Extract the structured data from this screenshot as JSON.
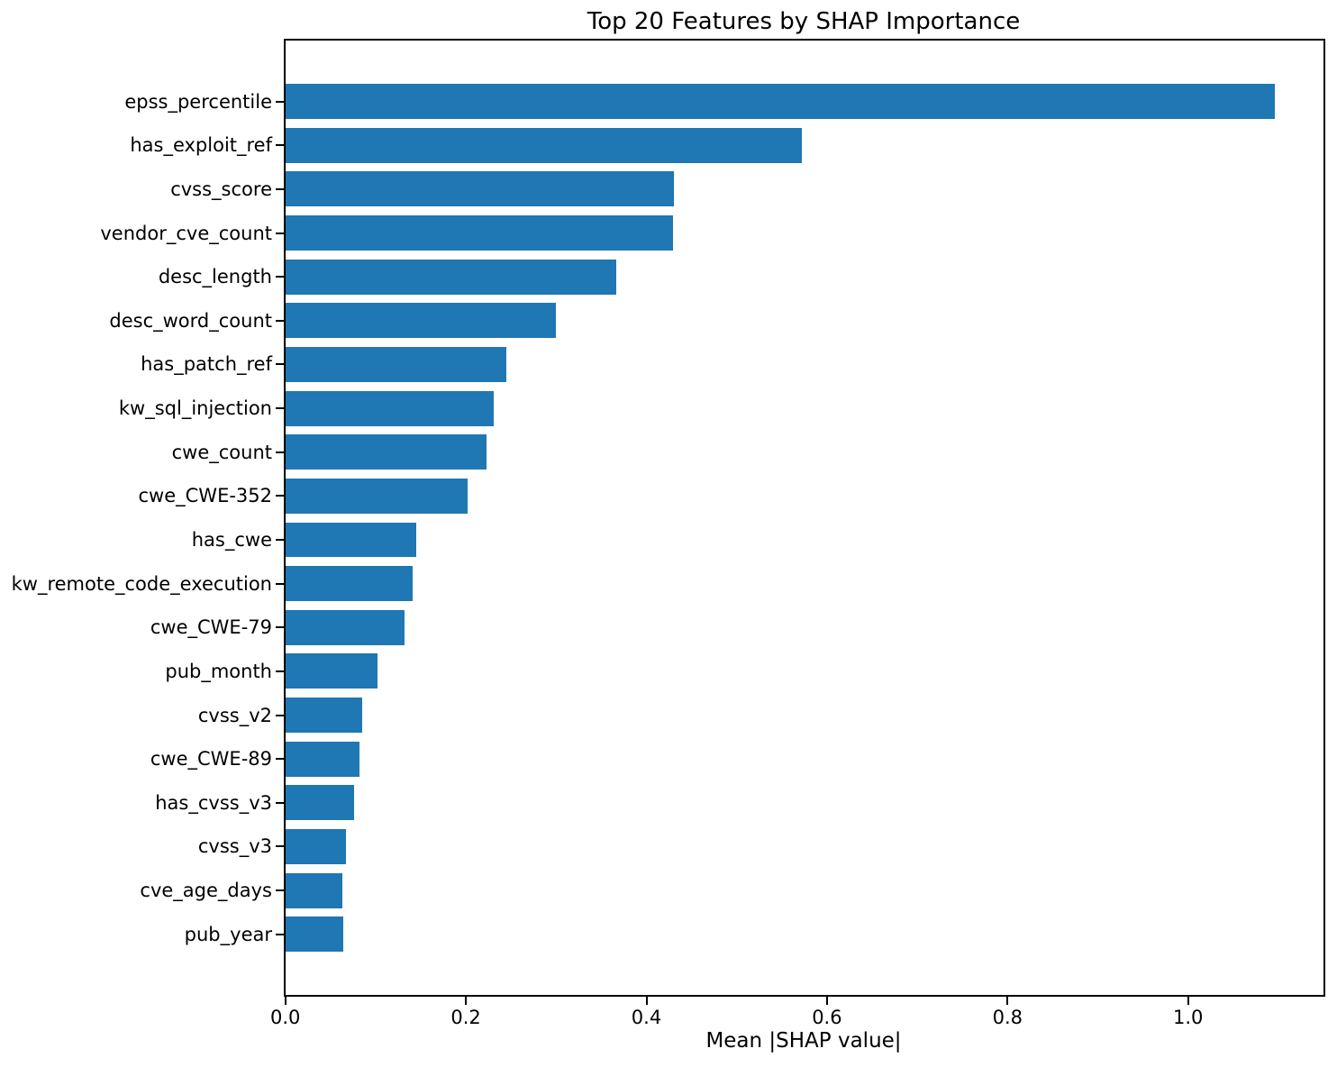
{
  "title": "Top 20 Features by SHAP Importance",
  "chart_data": {
    "type": "bar",
    "orientation": "horizontal",
    "title": "Top 20 Features by SHAP Importance",
    "xlabel": "Mean |SHAP value|",
    "ylabel": "",
    "categories": [
      "epss_percentile",
      "has_exploit_ref",
      "cvss_score",
      "vendor_cve_count",
      "desc_length",
      "desc_word_count",
      "has_patch_ref",
      "kw_sql_injection",
      "cwe_count",
      "cwe_CWE-352",
      "has_cwe",
      "kw_remote_code_execution",
      "cwe_CWE-79",
      "pub_month",
      "cvss_v2",
      "cwe_CWE-89",
      "has_cvss_v3",
      "cvss_v3",
      "cve_age_days",
      "pub_year"
    ],
    "values": [
      1.096,
      0.572,
      0.43,
      0.429,
      0.367,
      0.3,
      0.245,
      0.231,
      0.223,
      0.202,
      0.145,
      0.141,
      0.132,
      0.102,
      0.085,
      0.082,
      0.076,
      0.067,
      0.063,
      0.064
    ],
    "xlim": [
      0,
      1.15
    ],
    "xticks": [
      0.0,
      0.2,
      0.4,
      0.6,
      0.8,
      1.0
    ],
    "xtick_labels": [
      "0.0",
      "0.2",
      "0.4",
      "0.6",
      "0.8",
      "1.0"
    ],
    "grid": false,
    "legend": null,
    "bar_color": "#1f77b4",
    "axis_color": "#000000",
    "background_color": "#ffffff"
  }
}
